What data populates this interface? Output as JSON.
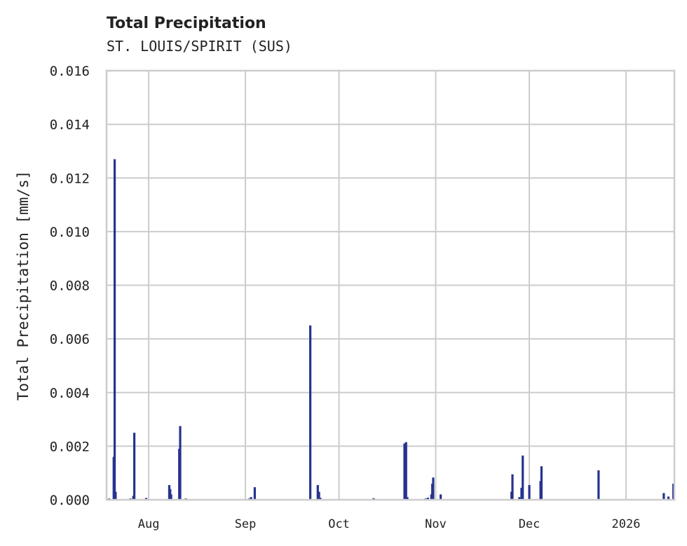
{
  "chart_data": {
    "type": "bar",
    "title": "Total Precipitation",
    "subtitle": "ST. LOUIS/SPIRIT (SUS)",
    "xlabel": "",
    "ylabel": "Total Precipitation [mm/s]",
    "ylim": [
      0,
      0.016
    ],
    "yticks": [
      "0.000",
      "0.002",
      "0.004",
      "0.006",
      "0.008",
      "0.010",
      "0.012",
      "0.014",
      "0.016"
    ],
    "xticks": [
      {
        "label": "Aug",
        "day": 0
      },
      {
        "label": "Sep",
        "day": 31
      },
      {
        "label": "Oct",
        "day": 61
      },
      {
        "label": "Nov",
        "day": 92
      },
      {
        "label": "Dec",
        "day": 122
      },
      {
        "label": "2026",
        "day": 153
      }
    ],
    "xlim_days": [
      -13.5,
      168.5
    ],
    "grid": true,
    "color": "#27338f",
    "series": [
      {
        "name": "Total Precipitation",
        "points": [
          {
            "day": -12.7,
            "value": 5e-05
          },
          {
            "day": -11.2,
            "value": 0.0016
          },
          {
            "day": -10.9,
            "value": 0.0127
          },
          {
            "day": -10.6,
            "value": 0.0003
          },
          {
            "day": -5.8,
            "value": 5e-05
          },
          {
            "day": -4.9,
            "value": 0.00015
          },
          {
            "day": -4.6,
            "value": 0.0025
          },
          {
            "day": -0.8,
            "value": 7e-05
          },
          {
            "day": 6.6,
            "value": 0.00055
          },
          {
            "day": 6.9,
            "value": 0.0004
          },
          {
            "day": 7.2,
            "value": 0.0002
          },
          {
            "day": 9.8,
            "value": 0.0019
          },
          {
            "day": 10.1,
            "value": 0.00275
          },
          {
            "day": 11.9,
            "value": 5e-05
          },
          {
            "day": 32.3,
            "value": 5e-05
          },
          {
            "day": 32.8,
            "value": 0.0001
          },
          {
            "day": 34.0,
            "value": 0.00047
          },
          {
            "day": 51.8,
            "value": 0.0065
          },
          {
            "day": 54.2,
            "value": 0.00055
          },
          {
            "day": 54.6,
            "value": 0.0003
          },
          {
            "day": 55.0,
            "value": 8e-05
          },
          {
            "day": 72.1,
            "value": 6e-05
          },
          {
            "day": 82.0,
            "value": 0.0021
          },
          {
            "day": 82.5,
            "value": 0.00215
          },
          {
            "day": 82.9,
            "value": 0.0001
          },
          {
            "day": 88.8,
            "value": 5e-05
          },
          {
            "day": 89.5,
            "value": 8e-05
          },
          {
            "day": 90.6,
            "value": 0.0002
          },
          {
            "day": 90.9,
            "value": 0.0006
          },
          {
            "day": 91.2,
            "value": 0.00083
          },
          {
            "day": 93.6,
            "value": 0.0002
          },
          {
            "day": 116.3,
            "value": 0.0003
          },
          {
            "day": 116.6,
            "value": 0.00095
          },
          {
            "day": 118.8,
            "value": 0.0001
          },
          {
            "day": 119.5,
            "value": 0.00045
          },
          {
            "day": 119.9,
            "value": 0.00165
          },
          {
            "day": 122.0,
            "value": 0.00055
          },
          {
            "day": 125.6,
            "value": 0.0007
          },
          {
            "day": 125.9,
            "value": 0.00125
          },
          {
            "day": 144.2,
            "value": 0.0011
          },
          {
            "day": 165.1,
            "value": 0.00025
          },
          {
            "day": 166.6,
            "value": 0.00012
          },
          {
            "day": 168.2,
            "value": 0.0006
          }
        ]
      }
    ]
  }
}
